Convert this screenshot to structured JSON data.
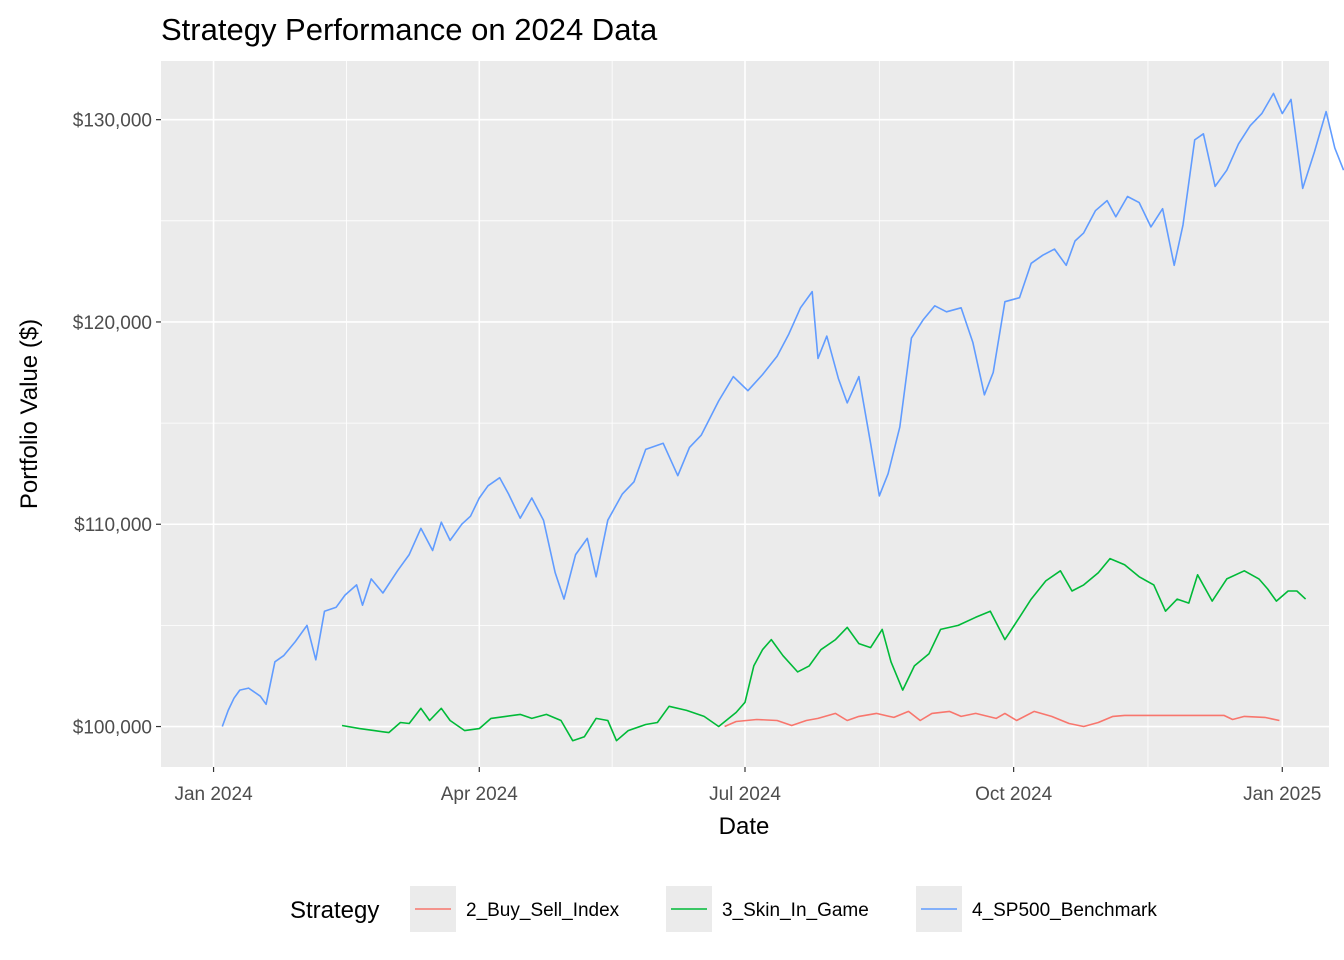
{
  "chart_data": {
    "type": "line",
    "title": "Strategy Performance on 2024 Data",
    "xlabel": "Date",
    "ylabel": "Portfolio Value ($)",
    "x_ticks": [
      "Jan 2024",
      "Apr 2024",
      "Jul 2024",
      "Oct 2024",
      "Jan 2025"
    ],
    "x_tick_dates": [
      "2024-01-01",
      "2024-04-01",
      "2024-07-01",
      "2024-10-01",
      "2025-01-01"
    ],
    "y_ticks": [
      "$100,000",
      "$110,000",
      "$120,000",
      "$130,000"
    ],
    "y_tick_values": [
      100000,
      110000,
      120000,
      130000
    ],
    "xlim": [
      "2023-12-14",
      "2025-01-17"
    ],
    "ylim": [
      98000,
      132900
    ],
    "grid": true,
    "legend": {
      "title": "Strategy",
      "position": "bottom"
    },
    "series": [
      {
        "name": "2_Buy_Sell_Index",
        "color": "#F8766D",
        "points": [
          [
            "2024-06-24",
            100000
          ],
          [
            "2024-06-28",
            100250
          ],
          [
            "2024-07-05",
            100350
          ],
          [
            "2024-07-12",
            100300
          ],
          [
            "2024-07-17",
            100050
          ],
          [
            "2024-07-22",
            100300
          ],
          [
            "2024-07-26",
            100400
          ],
          [
            "2024-08-01",
            100650
          ],
          [
            "2024-08-05",
            100300
          ],
          [
            "2024-08-09",
            100500
          ],
          [
            "2024-08-15",
            100650
          ],
          [
            "2024-08-21",
            100450
          ],
          [
            "2024-08-26",
            100750
          ],
          [
            "2024-08-30",
            100300
          ],
          [
            "2024-09-03",
            100650
          ],
          [
            "2024-09-09",
            100750
          ],
          [
            "2024-09-13",
            100500
          ],
          [
            "2024-09-18",
            100650
          ],
          [
            "2024-09-25",
            100400
          ],
          [
            "2024-09-28",
            100650
          ],
          [
            "2024-10-02",
            100300
          ],
          [
            "2024-10-08",
            100750
          ],
          [
            "2024-10-14",
            100500
          ],
          [
            "2024-10-20",
            100150
          ],
          [
            "2024-10-25",
            100000
          ],
          [
            "2024-10-30",
            100200
          ],
          [
            "2024-11-04",
            100500
          ],
          [
            "2024-11-08",
            100550
          ],
          [
            "2024-12-12",
            100550
          ],
          [
            "2024-12-15",
            100350
          ],
          [
            "2024-12-19",
            100500
          ],
          [
            "2024-12-26",
            100450
          ],
          [
            "2024-12-31",
            100300
          ]
        ]
      },
      {
        "name": "3_Skin_In_Game",
        "color": "#00BA38",
        "points": [
          [
            "2024-02-14",
            100050
          ],
          [
            "2024-02-20",
            99900
          ],
          [
            "2024-02-25",
            99800
          ],
          [
            "2024-03-01",
            99700
          ],
          [
            "2024-03-05",
            100200
          ],
          [
            "2024-03-08",
            100150
          ],
          [
            "2024-03-12",
            100900
          ],
          [
            "2024-03-15",
            100300
          ],
          [
            "2024-03-19",
            100900
          ],
          [
            "2024-03-22",
            100300
          ],
          [
            "2024-03-27",
            99800
          ],
          [
            "2024-04-01",
            99900
          ],
          [
            "2024-04-05",
            100400
          ],
          [
            "2024-04-10",
            100500
          ],
          [
            "2024-04-15",
            100600
          ],
          [
            "2024-04-19",
            100400
          ],
          [
            "2024-04-24",
            100600
          ],
          [
            "2024-04-29",
            100300
          ],
          [
            "2024-05-03",
            99300
          ],
          [
            "2024-05-07",
            99500
          ],
          [
            "2024-05-11",
            100400
          ],
          [
            "2024-05-15",
            100300
          ],
          [
            "2024-05-18",
            99300
          ],
          [
            "2024-05-22",
            99800
          ],
          [
            "2024-05-28",
            100100
          ],
          [
            "2024-06-01",
            100200
          ],
          [
            "2024-06-05",
            101000
          ],
          [
            "2024-06-11",
            100800
          ],
          [
            "2024-06-17",
            100500
          ],
          [
            "2024-06-22",
            100000
          ],
          [
            "2024-06-28",
            100700
          ],
          [
            "2024-07-01",
            101200
          ],
          [
            "2024-07-04",
            103000
          ],
          [
            "2024-07-07",
            103800
          ],
          [
            "2024-07-10",
            104300
          ],
          [
            "2024-07-14",
            103500
          ],
          [
            "2024-07-19",
            102700
          ],
          [
            "2024-07-23",
            103000
          ],
          [
            "2024-07-27",
            103800
          ],
          [
            "2024-08-01",
            104300
          ],
          [
            "2024-08-05",
            104900
          ],
          [
            "2024-08-09",
            104100
          ],
          [
            "2024-08-13",
            103900
          ],
          [
            "2024-08-17",
            104800
          ],
          [
            "2024-08-20",
            103200
          ],
          [
            "2024-08-24",
            101800
          ],
          [
            "2024-08-28",
            103000
          ],
          [
            "2024-09-02",
            103600
          ],
          [
            "2024-09-06",
            104800
          ],
          [
            "2024-09-12",
            105000
          ],
          [
            "2024-09-18",
            105400
          ],
          [
            "2024-09-23",
            105700
          ],
          [
            "2024-09-28",
            104300
          ],
          [
            "2024-10-03",
            105400
          ],
          [
            "2024-10-07",
            106300
          ],
          [
            "2024-10-12",
            107200
          ],
          [
            "2024-10-17",
            107700
          ],
          [
            "2024-10-21",
            106700
          ],
          [
            "2024-10-25",
            107000
          ],
          [
            "2024-10-30",
            107600
          ],
          [
            "2024-11-03",
            108300
          ],
          [
            "2024-11-08",
            108000
          ],
          [
            "2024-11-13",
            107400
          ],
          [
            "2024-11-18",
            107000
          ],
          [
            "2024-11-22",
            105700
          ],
          [
            "2024-11-26",
            106300
          ],
          [
            "2024-11-30",
            106100
          ],
          [
            "2024-12-03",
            107500
          ],
          [
            "2024-12-08",
            106200
          ],
          [
            "2024-12-13",
            107300
          ],
          [
            "2024-12-19",
            107700
          ],
          [
            "2024-12-24",
            107300
          ],
          [
            "2024-12-27",
            106800
          ],
          [
            "2024-12-30",
            106200
          ],
          [
            "2025-01-03",
            106700
          ],
          [
            "2025-01-06",
            106700
          ],
          [
            "2025-01-09",
            106300
          ]
        ]
      },
      {
        "name": "4_SP500_Benchmark",
        "color": "#619CFF",
        "points": [
          [
            "2024-01-04",
            100000
          ],
          [
            "2024-01-06",
            100800
          ],
          [
            "2024-01-08",
            101400
          ],
          [
            "2024-01-10",
            101800
          ],
          [
            "2024-01-13",
            101900
          ],
          [
            "2024-01-17",
            101500
          ],
          [
            "2024-01-19",
            101100
          ],
          [
            "2024-01-22",
            103200
          ],
          [
            "2024-01-25",
            103500
          ],
          [
            "2024-01-29",
            104200
          ],
          [
            "2024-02-02",
            105000
          ],
          [
            "2024-02-05",
            103300
          ],
          [
            "2024-02-08",
            105700
          ],
          [
            "2024-02-12",
            105900
          ],
          [
            "2024-02-15",
            106500
          ],
          [
            "2024-02-19",
            107000
          ],
          [
            "2024-02-21",
            106000
          ],
          [
            "2024-02-24",
            107300
          ],
          [
            "2024-02-28",
            106600
          ],
          [
            "2024-03-04",
            107700
          ],
          [
            "2024-03-08",
            108500
          ],
          [
            "2024-03-12",
            109800
          ],
          [
            "2024-03-16",
            108700
          ],
          [
            "2024-03-19",
            110100
          ],
          [
            "2024-03-22",
            109200
          ],
          [
            "2024-03-26",
            110000
          ],
          [
            "2024-03-29",
            110400
          ],
          [
            "2024-04-01",
            111300
          ],
          [
            "2024-04-04",
            111900
          ],
          [
            "2024-04-08",
            112300
          ],
          [
            "2024-04-11",
            111500
          ],
          [
            "2024-04-15",
            110300
          ],
          [
            "2024-04-19",
            111300
          ],
          [
            "2024-04-23",
            110200
          ],
          [
            "2024-04-27",
            107600
          ],
          [
            "2024-04-30",
            106300
          ],
          [
            "2024-05-04",
            108500
          ],
          [
            "2024-05-08",
            109300
          ],
          [
            "2024-05-11",
            107400
          ],
          [
            "2024-05-15",
            110200
          ],
          [
            "2024-05-20",
            111500
          ],
          [
            "2024-05-24",
            112100
          ],
          [
            "2024-05-28",
            113700
          ],
          [
            "2024-06-03",
            114000
          ],
          [
            "2024-06-08",
            112400
          ],
          [
            "2024-06-12",
            113800
          ],
          [
            "2024-06-16",
            114400
          ],
          [
            "2024-06-22",
            116100
          ],
          [
            "2024-06-27",
            117300
          ],
          [
            "2024-07-02",
            116600
          ],
          [
            "2024-07-07",
            117400
          ],
          [
            "2024-07-12",
            118300
          ],
          [
            "2024-07-16",
            119400
          ],
          [
            "2024-07-20",
            120700
          ],
          [
            "2024-07-24",
            121500
          ],
          [
            "2024-07-26",
            118200
          ],
          [
            "2024-07-29",
            119300
          ],
          [
            "2024-08-02",
            117200
          ],
          [
            "2024-08-05",
            116000
          ],
          [
            "2024-08-09",
            117300
          ],
          [
            "2024-08-13",
            114000
          ],
          [
            "2024-08-16",
            111400
          ],
          [
            "2024-08-19",
            112500
          ],
          [
            "2024-08-23",
            114800
          ],
          [
            "2024-08-27",
            119200
          ],
          [
            "2024-08-31",
            120100
          ],
          [
            "2024-09-04",
            120800
          ],
          [
            "2024-09-08",
            120500
          ],
          [
            "2024-09-13",
            120700
          ],
          [
            "2024-09-17",
            119000
          ],
          [
            "2024-09-21",
            116400
          ],
          [
            "2024-09-24",
            117500
          ],
          [
            "2024-09-28",
            121000
          ],
          [
            "2024-10-03",
            121200
          ],
          [
            "2024-10-07",
            122900
          ],
          [
            "2024-10-11",
            123300
          ],
          [
            "2024-10-15",
            123600
          ],
          [
            "2024-10-19",
            122800
          ],
          [
            "2024-10-22",
            124000
          ],
          [
            "2024-10-25",
            124400
          ],
          [
            "2024-10-29",
            125500
          ],
          [
            "2024-11-02",
            126000
          ],
          [
            "2024-11-05",
            125200
          ],
          [
            "2024-11-09",
            126200
          ],
          [
            "2024-11-13",
            125900
          ],
          [
            "2024-11-17",
            124700
          ],
          [
            "2024-11-21",
            125600
          ],
          [
            "2024-11-25",
            122800
          ],
          [
            "2024-11-28",
            124800
          ],
          [
            "2024-12-02",
            129000
          ],
          [
            "2024-12-05",
            129300
          ],
          [
            "2024-12-09",
            126700
          ],
          [
            "2024-12-13",
            127500
          ],
          [
            "2024-12-17",
            128800
          ],
          [
            "2024-12-21",
            129700
          ],
          [
            "2024-12-25",
            130300
          ],
          [
            "2024-12-29",
            131300
          ],
          [
            "2025-01-01",
            130300
          ],
          [
            "2025-01-04",
            131000
          ],
          [
            "2025-01-08",
            126600
          ],
          [
            "2025-01-12",
            128400
          ],
          [
            "2025-01-16",
            130400
          ],
          [
            "2025-01-19",
            128600
          ],
          [
            "2025-01-22",
            127500
          ]
        ]
      }
    ]
  }
}
